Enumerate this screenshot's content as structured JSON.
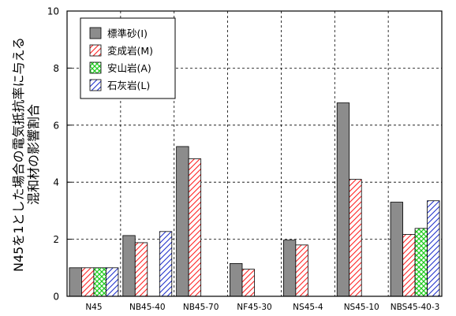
{
  "chart_data": {
    "type": "bar",
    "ylabel_lines": [
      "N45を1とした場合の電気抵抗率に与える",
      "混和材の影響割合"
    ],
    "ylim": [
      0,
      10
    ],
    "yticks": [
      0,
      2,
      4,
      6,
      8,
      10
    ],
    "grid": true,
    "legend_position": "top-left",
    "categories": [
      "N45",
      "NB45-40",
      "NB45-70",
      "NF45-30",
      "NS45-4",
      "NS45-10",
      "NBS45-40-3"
    ],
    "series": [
      {
        "name": "標準砂(I)",
        "values": [
          1.0,
          2.13,
          5.25,
          1.15,
          1.97,
          6.78,
          3.3
        ],
        "color": "#8c8c8c",
        "pattern": "solid"
      },
      {
        "name": "変成岩(M)",
        "values": [
          1.0,
          1.88,
          4.82,
          0.95,
          1.8,
          4.1,
          2.17
        ],
        "color": "#ff2222",
        "pattern": "diag"
      },
      {
        "name": "安山岩(A)",
        "values": [
          1.0,
          null,
          null,
          null,
          null,
          null,
          2.38
        ],
        "color": "#22cc22",
        "pattern": "cross"
      },
      {
        "name": "石灰岩(L)",
        "values": [
          1.0,
          2.27,
          null,
          null,
          null,
          null,
          3.35
        ],
        "color": "#2233cc",
        "pattern": "diag"
      }
    ]
  }
}
